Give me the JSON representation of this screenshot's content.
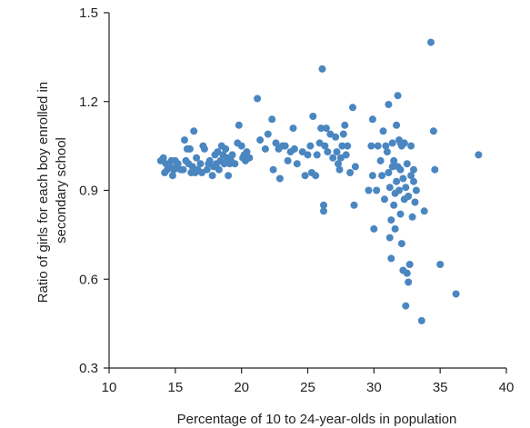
{
  "chart_data": {
    "type": "scatter",
    "title": "",
    "xlabel": "Percentage of 10 to 24-year-olds in population",
    "ylabel_lines": [
      "Ratio of girls for each boy enrolled in",
      "secondary school"
    ],
    "xlim": [
      10,
      40
    ],
    "ylim": [
      0.3,
      1.5
    ],
    "x_ticks": [
      "10",
      "15",
      "20",
      "25",
      "30",
      "35",
      "40"
    ],
    "x_tick_values": [
      10,
      15,
      20,
      25,
      30,
      35,
      40
    ],
    "y_ticks": [
      "0.3",
      "0.6",
      "0.9",
      "1.2",
      "1.5"
    ],
    "y_tick_values": [
      0.3,
      0.6,
      0.9,
      1.2,
      1.5
    ],
    "grid": false,
    "marker_color": "#4a86c0",
    "axis_color": "#222222",
    "points": [
      [
        13.9,
        1.0
      ],
      [
        14.1,
        1.01
      ],
      [
        14.3,
        0.99
      ],
      [
        14.2,
        0.96
      ],
      [
        14.4,
        0.97
      ],
      [
        14.6,
        0.98
      ],
      [
        14.7,
        1.0
      ],
      [
        14.8,
        0.95
      ],
      [
        14.9,
        0.97
      ],
      [
        15.0,
        1.0
      ],
      [
        15.1,
        0.98
      ],
      [
        15.2,
        0.99
      ],
      [
        15.4,
        0.97
      ],
      [
        15.6,
        0.97
      ],
      [
        15.8,
        1.0
      ],
      [
        15.7,
        1.07
      ],
      [
        15.9,
        1.04
      ],
      [
        16.0,
        0.99
      ],
      [
        16.1,
        1.04
      ],
      [
        16.2,
        0.96
      ],
      [
        16.3,
        0.98
      ],
      [
        16.4,
        1.1
      ],
      [
        16.5,
        0.96
      ],
      [
        16.6,
        1.01
      ],
      [
        16.7,
        0.97
      ],
      [
        16.9,
        0.99
      ],
      [
        17.0,
        0.96
      ],
      [
        17.1,
        1.05
      ],
      [
        17.2,
        1.04
      ],
      [
        17.4,
        0.97
      ],
      [
        17.5,
        0.99
      ],
      [
        17.6,
        1.0
      ],
      [
        17.8,
        0.95
      ],
      [
        17.9,
        0.98
      ],
      [
        18.0,
        1.02
      ],
      [
        18.1,
        0.99
      ],
      [
        18.2,
        1.03
      ],
      [
        18.3,
        0.97
      ],
      [
        18.4,
        1.0
      ],
      [
        18.5,
        1.05
      ],
      [
        18.6,
        1.02
      ],
      [
        18.7,
        0.99
      ],
      [
        18.8,
        1.04
      ],
      [
        18.9,
        1.01
      ],
      [
        19.0,
        0.95
      ],
      [
        19.1,
        0.99
      ],
      [
        19.2,
        1.0
      ],
      [
        19.3,
        1.02
      ],
      [
        19.5,
        0.99
      ],
      [
        19.7,
        1.06
      ],
      [
        19.8,
        1.12
      ],
      [
        20.0,
        1.05
      ],
      [
        20.1,
        1.01
      ],
      [
        20.2,
        1.02
      ],
      [
        20.3,
        1.0
      ],
      [
        20.4,
        1.03
      ],
      [
        20.6,
        1.01
      ],
      [
        21.2,
        1.21
      ],
      [
        21.4,
        1.07
      ],
      [
        21.8,
        1.04
      ],
      [
        22.0,
        1.09
      ],
      [
        22.3,
        1.14
      ],
      [
        22.4,
        0.97
      ],
      [
        22.6,
        1.06
      ],
      [
        22.8,
        1.04
      ],
      [
        22.9,
        0.94
      ],
      [
        23.1,
        1.05
      ],
      [
        23.3,
        1.05
      ],
      [
        23.5,
        1.0
      ],
      [
        23.7,
        1.03
      ],
      [
        23.9,
        1.11
      ],
      [
        24.0,
        1.04
      ],
      [
        24.2,
        0.99
      ],
      [
        24.6,
        1.03
      ],
      [
        24.8,
        0.95
      ],
      [
        25.0,
        1.02
      ],
      [
        25.2,
        1.05
      ],
      [
        25.3,
        0.96
      ],
      [
        25.4,
        1.15
      ],
      [
        25.6,
        0.95
      ],
      [
        25.7,
        1.02
      ],
      [
        25.9,
        1.06
      ],
      [
        26.0,
        1.11
      ],
      [
        26.1,
        1.31
      ],
      [
        26.2,
        0.85
      ],
      [
        26.3,
        1.05
      ],
      [
        26.4,
        1.11
      ],
      [
        26.5,
        1.03
      ],
      [
        26.7,
        1.09
      ],
      [
        26.9,
        1.01
      ],
      [
        27.1,
        1.08
      ],
      [
        27.2,
        1.03
      ],
      [
        27.3,
        0.99
      ],
      [
        27.4,
        0.97
      ],
      [
        27.5,
        1.01
      ],
      [
        27.6,
        1.05
      ],
      [
        27.7,
        1.09
      ],
      [
        27.8,
        1.12
      ],
      [
        27.9,
        1.02
      ],
      [
        28.0,
        1.05
      ],
      [
        28.2,
        0.96
      ],
      [
        28.4,
        1.18
      ],
      [
        28.5,
        0.85
      ],
      [
        28.6,
        0.98
      ],
      [
        26.2,
        0.83
      ],
      [
        29.6,
        0.9
      ],
      [
        29.8,
        1.05
      ],
      [
        29.9,
        1.14
      ],
      [
        30.0,
        0.77
      ],
      [
        30.3,
        1.05
      ],
      [
        30.5,
        1.0
      ],
      [
        30.7,
        1.1
      ],
      [
        30.8,
        0.87
      ],
      [
        30.9,
        1.05
      ],
      [
        31.0,
        1.03
      ],
      [
        31.1,
        1.19
      ],
      [
        31.1,
        0.96
      ],
      [
        31.2,
        0.91
      ],
      [
        31.2,
        0.74
      ],
      [
        31.3,
        0.8
      ],
      [
        31.3,
        0.67
      ],
      [
        31.4,
        1.06
      ],
      [
        31.5,
        0.85
      ],
      [
        31.5,
        1.0
      ],
      [
        31.6,
        0.89
      ],
      [
        31.6,
        0.77
      ],
      [
        31.7,
        0.93
      ],
      [
        31.7,
        1.12
      ],
      [
        31.8,
        1.22
      ],
      [
        31.8,
        0.98
      ],
      [
        31.9,
        0.9
      ],
      [
        32.0,
        0.97
      ],
      [
        32.0,
        0.82
      ],
      [
        32.1,
        0.72
      ],
      [
        32.1,
        1.05
      ],
      [
        32.2,
        0.94
      ],
      [
        32.2,
        0.63
      ],
      [
        32.3,
        0.87
      ],
      [
        32.3,
        1.06
      ],
      [
        32.4,
        0.51
      ],
      [
        32.4,
        0.91
      ],
      [
        32.5,
        0.99
      ],
      [
        32.5,
        0.62
      ],
      [
        32.6,
        0.88
      ],
      [
        32.6,
        0.59
      ],
      [
        32.7,
        0.65
      ],
      [
        32.8,
        0.95
      ],
      [
        32.8,
        1.05
      ],
      [
        32.9,
        0.81
      ],
      [
        33.0,
        0.93
      ],
      [
        33.0,
        0.97
      ],
      [
        33.1,
        0.86
      ],
      [
        33.2,
        0.9
      ],
      [
        33.6,
        0.46
      ],
      [
        33.8,
        0.83
      ],
      [
        34.3,
        1.4
      ],
      [
        34.5,
        1.1
      ],
      [
        34.6,
        0.97
      ],
      [
        35.0,
        0.65
      ],
      [
        36.2,
        0.55
      ],
      [
        37.9,
        1.02
      ],
      [
        30.2,
        0.9
      ],
      [
        31.4,
        0.98
      ],
      [
        32.0,
        1.06
      ],
      [
        29.9,
        0.95
      ],
      [
        30.6,
        0.95
      ],
      [
        31.9,
        1.07
      ]
    ]
  }
}
